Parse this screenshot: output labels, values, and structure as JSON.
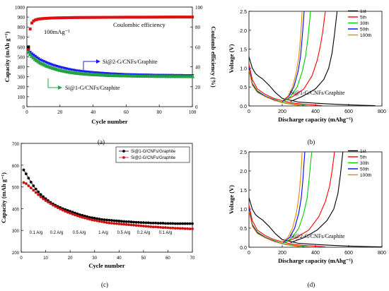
{
  "figure": {
    "panel_labels": [
      "(a)",
      "(b)",
      "(c)",
      "(d)"
    ]
  },
  "chart_data": [
    {
      "id": "a",
      "type": "scatter",
      "xlabel": "Cycle number",
      "ylabel": "Capacity (mAh g⁻¹)",
      "y2label": "Coulomb efficiency (%)",
      "xlim": [
        0,
        100
      ],
      "ylim": [
        0,
        1000
      ],
      "y2lim": [
        0,
        100
      ],
      "xticks": [
        0,
        20,
        40,
        60,
        80,
        100
      ],
      "yticks": [
        0,
        100,
        200,
        300,
        400,
        500,
        600,
        700,
        800,
        900,
        1000
      ],
      "y2ticks": [
        0,
        20,
        40,
        60,
        80,
        100
      ],
      "annotations": {
        "rate": "100mAg⁻¹",
        "ce": "Coulombic efficiency",
        "s2": "Si@2-G/CNFs/Graphite",
        "s1": "Si@1-G/CNFs/Graphite"
      },
      "series": [
        {
          "name": "Si@2-G/CNFs/Graphite",
          "color": "#1a1aff",
          "x": [
            1,
            2,
            3,
            5,
            8,
            12,
            16,
            20,
            25,
            30,
            35,
            40,
            45,
            50,
            60,
            70,
            80,
            90,
            100
          ],
          "y": [
            560,
            545,
            530,
            505,
            470,
            440,
            415,
            395,
            375,
            360,
            350,
            342,
            336,
            330,
            322,
            318,
            315,
            313,
            312
          ]
        },
        {
          "name": "Si@1-G/CNFs/Graphite",
          "color": "#22aa44",
          "x": [
            1,
            2,
            3,
            5,
            8,
            12,
            16,
            20,
            25,
            30,
            35,
            40,
            45,
            50,
            60,
            70,
            80,
            90,
            100
          ],
          "y": [
            545,
            525,
            505,
            475,
            440,
            408,
            385,
            365,
            348,
            336,
            328,
            322,
            318,
            314,
            310,
            307,
            305,
            304,
            303
          ]
        },
        {
          "name": "Coulombic efficiency",
          "color": "#dd1111",
          "axis": "right",
          "x": [
            1,
            2,
            3,
            4,
            5,
            7,
            10,
            15,
            20,
            30,
            40,
            50,
            60,
            70,
            80,
            90,
            100
          ],
          "y": [
            58,
            78,
            84,
            86,
            87,
            88,
            88.5,
            89,
            89.2,
            89.5,
            89.6,
            89.7,
            89.8,
            89.8,
            89.9,
            90,
            90
          ]
        }
      ]
    },
    {
      "id": "b",
      "type": "line",
      "xlabel": "Discharge capacity (mAhg⁻¹)",
      "ylabel": "Voltage (V)",
      "xlim": [
        0,
        800
      ],
      "ylim": [
        0,
        2.5
      ],
      "xticks": [
        0,
        200,
        400,
        600,
        800
      ],
      "yticks": [
        0.0,
        0.5,
        1.0,
        1.5,
        2.0,
        2.5
      ],
      "annotation": "Si@1-G/CNFs/Graphite",
      "series": [
        {
          "name": "1st",
          "color": "#000000",
          "discharge": {
            "x": [
              0,
              20,
              40,
              60,
              80,
              120,
              160,
              200,
              300,
              450,
              600,
              700,
              760
            ],
            "y": [
              1.3,
              1.0,
              0.85,
              0.78,
              0.72,
              0.55,
              0.35,
              0.2,
              0.1,
              0.06,
              0.03,
              0.015,
              0.01
            ]
          },
          "charge": {
            "x": [
              250,
              320,
              400,
              450,
              480,
              500,
              515,
              525,
              530
            ],
            "y": [
              0.12,
              0.25,
              0.45,
              0.7,
              1.0,
              1.4,
              1.9,
              2.3,
              2.5
            ]
          }
        },
        {
          "name": "5th",
          "color": "#ff0000",
          "discharge": {
            "x": [
              0,
              20,
              50,
              100,
              150,
              200,
              260,
              320,
              380,
              440
            ],
            "y": [
              1.1,
              0.7,
              0.45,
              0.3,
              0.2,
              0.14,
              0.08,
              0.05,
              0.03,
              0.01
            ]
          },
          "charge": {
            "x": [
              200,
              260,
              330,
              380,
              410,
              430,
              445,
              455,
              460
            ],
            "y": [
              0.12,
              0.24,
              0.45,
              0.8,
              1.2,
              1.6,
              2.0,
              2.35,
              2.5
            ]
          }
        },
        {
          "name": "30th",
          "color": "#00cc00",
          "discharge": {
            "x": [
              0,
              20,
              50,
              100,
              150,
              200,
              250,
              300,
              350
            ],
            "y": [
              1.0,
              0.6,
              0.4,
              0.26,
              0.17,
              0.1,
              0.06,
              0.03,
              0.01
            ]
          },
          "charge": {
            "x": [
              210,
              250,
              290,
              320,
              340,
              355,
              365,
              370
            ],
            "y": [
              0.12,
              0.25,
              0.5,
              0.9,
              1.3,
              1.8,
              2.25,
              2.5
            ]
          }
        },
        {
          "name": "50th",
          "color": "#0000ff",
          "discharge": {
            "x": [
              0,
              20,
              50,
              100,
              150,
              200,
              250,
              300,
              330
            ],
            "y": [
              1.0,
              0.58,
              0.38,
              0.25,
              0.16,
              0.09,
              0.05,
              0.02,
              0.01
            ]
          },
          "charge": {
            "x": [
              200,
              240,
              270,
              295,
              310,
              320,
              328,
              332
            ],
            "y": [
              0.12,
              0.26,
              0.5,
              0.9,
              1.3,
              1.8,
              2.25,
              2.5
            ]
          }
        },
        {
          "name": "100th",
          "color": "#e08a00",
          "discharge": {
            "x": [
              0,
              20,
              50,
              100,
              150,
              200,
              250,
              300,
              320
            ],
            "y": [
              0.95,
              0.55,
              0.36,
              0.24,
              0.15,
              0.09,
              0.05,
              0.02,
              0.01
            ]
          },
          "charge": {
            "x": [
              195,
              235,
              262,
              285,
              300,
              310,
              317,
              320
            ],
            "y": [
              0.12,
              0.26,
              0.5,
              0.9,
              1.3,
              1.8,
              2.25,
              2.5
            ]
          }
        }
      ]
    },
    {
      "id": "c",
      "type": "scatter",
      "xlabel": "Cycle number",
      "ylabel": "Capacity (mAh g⁻¹)",
      "xlim": [
        0,
        70
      ],
      "ylim": [
        200,
        700
      ],
      "xticks": [
        0,
        10,
        20,
        30,
        40,
        50,
        60,
        70
      ],
      "yticks": [
        200,
        300,
        400,
        500,
        600,
        700
      ],
      "rate_labels": [
        "0.1 A/g",
        "0.2 A/g",
        "0.5 A/g",
        "1 A/g",
        "0.5 A/g",
        "0.2 A/g",
        "0.1 A/g"
      ],
      "series": [
        {
          "name": "Si@1-G/CNFs/Graphite",
          "color": "#000000",
          "y": [
            578,
            560,
            540,
            522,
            505,
            490,
            477,
            465,
            455,
            446,
            437,
            429,
            422,
            416,
            410,
            405,
            400,
            396,
            392,
            388,
            384,
            380,
            376,
            372,
            369,
            366,
            363,
            360,
            358,
            356,
            354,
            352,
            350,
            349,
            348,
            347,
            346,
            345,
            344,
            343,
            342,
            341,
            340,
            340,
            339,
            338,
            337,
            337,
            336,
            336,
            335,
            335,
            334,
            334,
            334,
            333,
            333,
            333,
            332,
            332,
            332,
            332,
            331,
            331,
            331,
            331,
            331,
            331,
            331,
            331
          ]
        },
        {
          "name": "Si@2-G/CNFs/Graphite",
          "color": "#cc1111",
          "y": [
            520,
            515,
            505,
            495,
            485,
            474,
            464,
            454,
            445,
            437,
            430,
            423,
            416,
            410,
            404,
            398,
            393,
            388,
            383,
            379,
            375,
            371,
            367,
            363,
            360,
            357,
            354,
            351,
            348,
            346,
            344,
            342,
            340,
            338,
            336,
            334,
            333,
            332,
            331,
            330,
            329,
            328,
            327,
            326,
            325,
            324,
            323,
            322,
            321,
            320,
            319,
            318,
            317,
            316,
            316,
            315,
            314,
            313,
            313,
            312,
            311,
            311,
            310,
            310,
            309,
            309,
            308,
            308,
            307,
            307
          ]
        }
      ]
    },
    {
      "id": "d",
      "type": "line",
      "xlabel": "Discharge capacity (mAhg⁻¹)",
      "ylabel": "Voltage (V)",
      "xlim": [
        0,
        800
      ],
      "ylim": [
        0,
        2.5
      ],
      "xticks": [
        0,
        200,
        400,
        600,
        800
      ],
      "yticks": [
        0.0,
        0.5,
        1.0,
        1.5,
        2.0,
        2.5
      ],
      "annotation": "Si@2-G/CNFs/Graphite",
      "series": [
        {
          "name": "1st",
          "color": "#000000",
          "discharge": {
            "x": [
              0,
              20,
              40,
              60,
              80,
              120,
              160,
              200,
              300,
              450,
              600,
              720,
              800
            ],
            "y": [
              1.3,
              1.0,
              0.85,
              0.78,
              0.72,
              0.55,
              0.35,
              0.2,
              0.1,
              0.06,
              0.03,
              0.015,
              0.01
            ]
          },
          "charge": {
            "x": [
              250,
              330,
              410,
              470,
              510,
              535,
              550,
              560,
              565
            ],
            "y": [
              0.12,
              0.25,
              0.45,
              0.7,
              1.0,
              1.4,
              1.9,
              2.3,
              2.5
            ]
          }
        },
        {
          "name": "5th",
          "color": "#ff0000",
          "discharge": {
            "x": [
              0,
              20,
              50,
              100,
              150,
              200,
              260,
              320,
              400,
              460
            ],
            "y": [
              1.1,
              0.7,
              0.45,
              0.3,
              0.2,
              0.14,
              0.08,
              0.05,
              0.03,
              0.01
            ]
          },
          "charge": {
            "x": [
              210,
              280,
              360,
              420,
              460,
              485,
              500,
              510,
              515
            ],
            "y": [
              0.12,
              0.24,
              0.45,
              0.8,
              1.2,
              1.6,
              2.0,
              2.35,
              2.5
            ]
          }
        },
        {
          "name": "30th",
          "color": "#00cc00",
          "discharge": {
            "x": [
              0,
              20,
              50,
              100,
              150,
              200,
              250,
              300,
              360
            ],
            "y": [
              1.0,
              0.6,
              0.4,
              0.26,
              0.17,
              0.1,
              0.06,
              0.03,
              0.01
            ]
          },
          "charge": {
            "x": [
              215,
              260,
              300,
              330,
              350,
              362,
              372,
              378
            ],
            "y": [
              0.12,
              0.25,
              0.5,
              0.9,
              1.3,
              1.8,
              2.25,
              2.5
            ]
          }
        },
        {
          "name": "50th",
          "color": "#0000ff",
          "discharge": {
            "x": [
              0,
              20,
              50,
              100,
              150,
              200,
              250,
              300,
              330
            ],
            "y": [
              1.0,
              0.58,
              0.38,
              0.25,
              0.16,
              0.09,
              0.05,
              0.02,
              0.01
            ]
          },
          "charge": {
            "x": [
              205,
              245,
              275,
              300,
              315,
              325,
              332,
              336
            ],
            "y": [
              0.12,
              0.26,
              0.5,
              0.9,
              1.3,
              1.8,
              2.25,
              2.5
            ]
          }
        },
        {
          "name": "100th",
          "color": "#e08a00",
          "discharge": {
            "x": [
              0,
              20,
              50,
              100,
              150,
              200,
              250,
              300,
              320
            ],
            "y": [
              0.95,
              0.55,
              0.36,
              0.24,
              0.15,
              0.09,
              0.05,
              0.02,
              0.01
            ]
          },
          "charge": {
            "x": [
              195,
              235,
              262,
              285,
              300,
              310,
              317,
              320
            ],
            "y": [
              0.12,
              0.26,
              0.5,
              0.9,
              1.3,
              1.8,
              2.25,
              2.5
            ]
          }
        }
      ]
    }
  ]
}
